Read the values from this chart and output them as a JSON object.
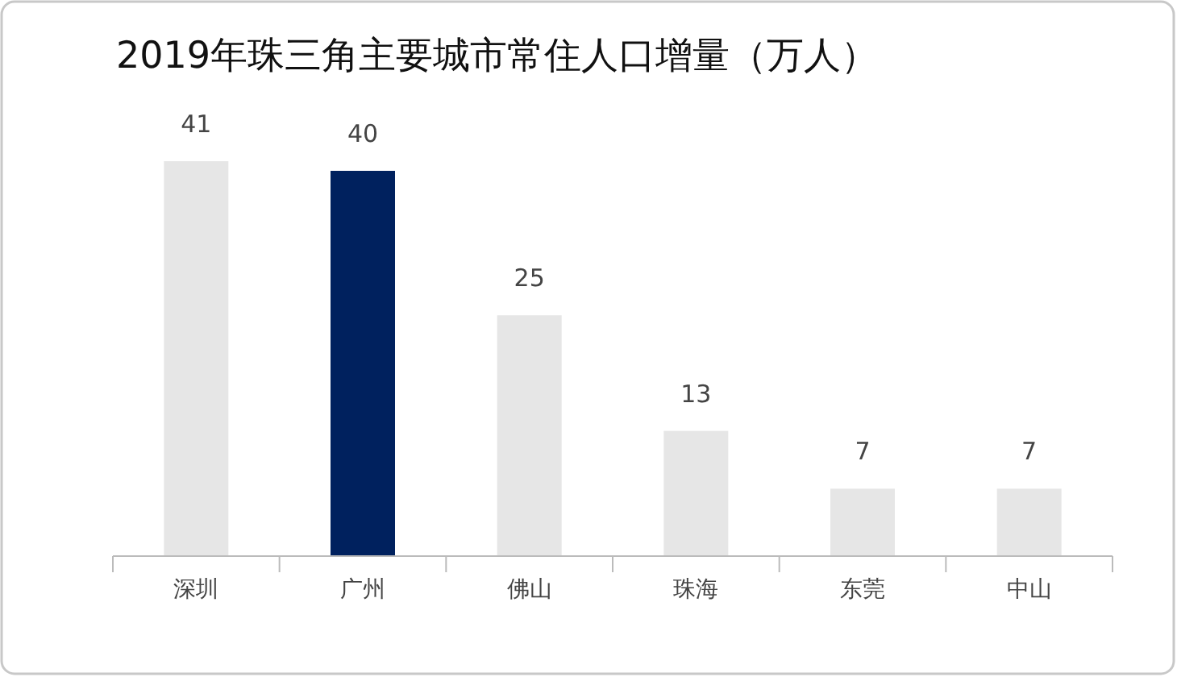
{
  "chart_data": {
    "type": "bar",
    "title": "2019年珠三角主要城市常住人口增量（万人）",
    "categories": [
      "深圳",
      "广州",
      "佛山",
      "珠海",
      "东莞",
      "中山"
    ],
    "values": [
      41,
      40,
      25,
      13,
      7,
      7
    ],
    "colors": [
      "#e6e6e6",
      "#00215e",
      "#e6e6e6",
      "#e6e6e6",
      "#e6e6e6",
      "#e6e6e6"
    ],
    "data_labels": true
  }
}
